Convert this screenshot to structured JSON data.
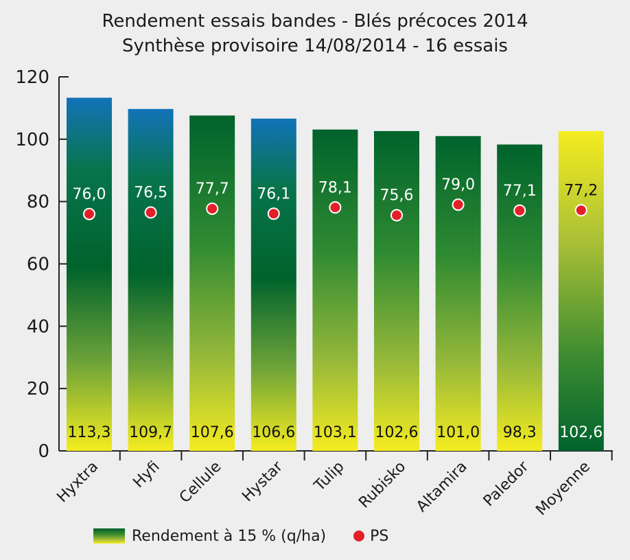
{
  "chart_data": {
    "type": "bar",
    "title": "Rendement essais bandes - Blés précoces 2014",
    "subtitle": "Synthèse provisoire 14/08/2014 - 16 essais",
    "categories": [
      "Hyxtra",
      "Hyfi",
      "Cellule",
      "Hystar",
      "Tulip",
      "Rubisko",
      "Altamira",
      "Paledor",
      "Moyenne"
    ],
    "series": [
      {
        "name": "Rendement à 15 % (q/ha)",
        "type": "bar",
        "values": [
          113.3,
          109.7,
          107.6,
          106.6,
          103.1,
          102.6,
          101.0,
          98.3,
          102.6
        ],
        "value_labels": [
          "113,3",
          "109,7",
          "107,6",
          "106,6",
          "103,1",
          "102,6",
          "101,0",
          "98,3",
          "102,6"
        ]
      },
      {
        "name": "PS",
        "type": "scatter",
        "values": [
          76.0,
          76.5,
          77.7,
          76.1,
          78.1,
          75.6,
          79.0,
          77.1,
          77.2
        ],
        "value_labels": [
          "76,0",
          "76,5",
          "77,7",
          "76,1",
          "78,1",
          "75,6",
          "79,0",
          "77,1",
          "77,2"
        ]
      }
    ],
    "bar_styles": [
      "blue",
      "blue",
      "green",
      "blue",
      "green",
      "green",
      "green",
      "green",
      "yellow"
    ],
    "y_ticks": [
      "0",
      "20",
      "40",
      "60",
      "80",
      "100",
      "120"
    ],
    "ylim": [
      0,
      120
    ],
    "legend_position": "bottom",
    "colors": {
      "blue_top": "#1273b8",
      "green_dark": "#00632c",
      "yellow": "#f5ec20",
      "ps_dot": "#e3202a",
      "background": "#eeeeee"
    }
  },
  "legend": {
    "bar_label": "Rendement à 15 % (q/ha)",
    "dot_label": "PS"
  }
}
